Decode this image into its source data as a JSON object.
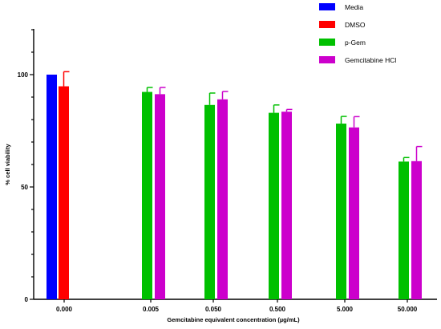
{
  "chart_data": {
    "type": "bar",
    "title": "",
    "xlabel": "Gemcitabine equivalent concentration (µg/mL)",
    "ylabel": "% cell viability",
    "ylim": [
      0,
      120
    ],
    "yticks": [
      0,
      50,
      100
    ],
    "grid": false,
    "legend_position": "top-right",
    "categories": [
      "0.000",
      "0.005",
      "0.050",
      "0.500",
      "5.000",
      "50.000"
    ],
    "series": [
      {
        "name": "Media",
        "color": "#0000ff",
        "values": [
          100,
          null,
          null,
          null,
          null,
          null
        ],
        "errors": [
          0,
          null,
          null,
          null,
          null,
          null
        ]
      },
      {
        "name": "DMSO",
        "color": "#ff0000",
        "values": [
          94.8,
          null,
          null,
          null,
          null,
          null
        ],
        "errors": [
          6.5,
          null,
          null,
          null,
          null,
          null
        ]
      },
      {
        "name": "p-Gem",
        "color": "#00c000",
        "values": [
          null,
          92.3,
          86.5,
          83.0,
          78.2,
          61.3
        ],
        "errors": [
          null,
          2.0,
          5.3,
          3.5,
          3.2,
          1.8
        ]
      },
      {
        "name": "Gemcitabine HCl",
        "color": "#cc00cc",
        "values": [
          null,
          91.3,
          89.0,
          83.5,
          76.5,
          61.5
        ],
        "errors": [
          null,
          3.0,
          3.5,
          1.0,
          4.8,
          6.5
        ]
      }
    ]
  }
}
